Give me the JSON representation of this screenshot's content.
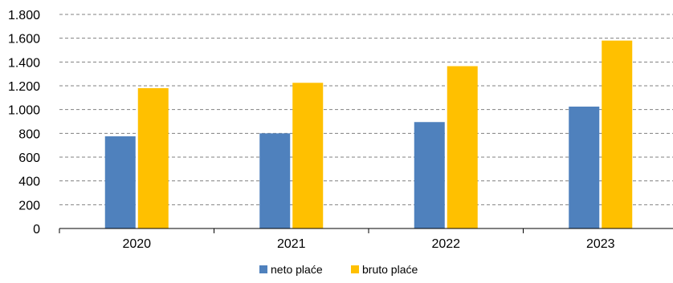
{
  "chart_data": {
    "type": "bar",
    "categories": [
      "2020",
      "2021",
      "2022",
      "2023"
    ],
    "series": [
      {
        "name": "neto plaće",
        "color": "#4F81BD",
        "values": [
          775,
          800,
          895,
          1025
        ]
      },
      {
        "name": "bruto plaće",
        "color": "#FFC000",
        "values": [
          1180,
          1225,
          1365,
          1580
        ]
      }
    ],
    "ylim": [
      0,
      1800
    ],
    "yticks": [
      0,
      200,
      400,
      600,
      800,
      1000,
      1200,
      1400,
      1600,
      1800
    ],
    "ytick_labels": [
      "0",
      "200",
      "400",
      "600",
      "800",
      "1.000",
      "1.200",
      "1.400",
      "1.600",
      "1.800"
    ],
    "grid": true,
    "legend_position": "bottom-center"
  }
}
